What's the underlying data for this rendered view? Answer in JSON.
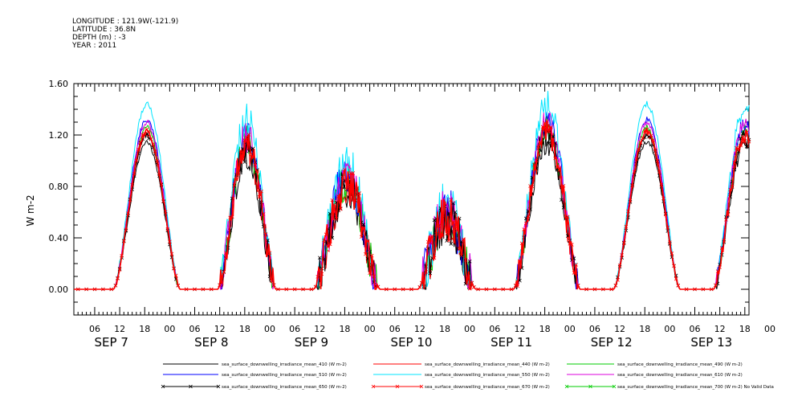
{
  "header": {
    "longitude": "LONGITUDE : 121.9W(-121.9)",
    "latitude": "LATITUDE : 36.8N",
    "depth": "DEPTH (m) : -3",
    "year": "YEAR : 2011"
  },
  "chart_data": {
    "type": "line",
    "title": "",
    "xlabel": "",
    "ylabel": "W m-2",
    "ylim": [
      -0.2,
      1.6
    ],
    "yticks": [
      "0.00",
      "0.40",
      "0.80",
      "1.20",
      "1.60"
    ],
    "ytick_values": [
      0.0,
      0.4,
      0.8,
      1.2,
      1.6
    ],
    "x_unit": "hours",
    "x_range_hours": [
      1,
      163
    ],
    "hour_tick_labels": [
      "06",
      "12",
      "18",
      "00",
      "06",
      "12",
      "18",
      "00",
      "06",
      "12",
      "18",
      "00",
      "06",
      "12",
      "18",
      "00",
      "06",
      "12",
      "18",
      "00",
      "06",
      "12",
      "18",
      "00",
      "06",
      "12",
      "18",
      "00"
    ],
    "day_labels": [
      "SEP 7",
      "SEP 8",
      "SEP 9",
      "SEP 10",
      "SEP 11",
      "SEP 12",
      "SEP 13"
    ],
    "days": [
      {
        "label": "SEP 7",
        "center": 18.5,
        "half_width": 8,
        "peak": 1.2,
        "noise": 0.02
      },
      {
        "label": "SEP 8",
        "center": 42.5,
        "half_width": 7,
        "peak": 1.1,
        "noise": 0.12
      },
      {
        "label": "SEP 9",
        "center": 66.5,
        "half_width": 8,
        "peak": 0.8,
        "noise": 0.15
      },
      {
        "label": "SEP 10",
        "center": 90.5,
        "half_width": 7,
        "peak": 0.55,
        "noise": 0.18
      },
      {
        "label": "SEP 11",
        "center": 114.5,
        "half_width": 8,
        "peak": 1.2,
        "noise": 0.1
      },
      {
        "label": "SEP 12",
        "center": 138.5,
        "half_width": 8,
        "peak": 1.2,
        "noise": 0.02
      },
      {
        "label": "SEP 13",
        "center": 162.0,
        "half_width": 7.5,
        "peak": 1.18,
        "noise": 0.06
      }
    ],
    "series": [
      {
        "name": "sea_surface_downwelling_irradiance_mean_410 (W m-2)",
        "color": "#000000",
        "scale": 0.95,
        "marker": "none"
      },
      {
        "name": "sea_surface_downwelling_irradiance_mean_440 (W m-2)",
        "color": "#ff0000",
        "scale": 1.0,
        "marker": "none"
      },
      {
        "name": "sea_surface_downwelling_irradiance_mean_490 (W m-2)",
        "color": "#00cc00",
        "scale": 1.05,
        "marker": "none"
      },
      {
        "name": "sea_surface_downwelling_irradiance_mean_510 (W m-2)",
        "color": "#0000ff",
        "scale": 1.1,
        "marker": "none"
      },
      {
        "name": "sea_surface_downwelling_irradiance_mean_550 (W m-2)",
        "color": "#00e5ff",
        "scale": 1.2,
        "marker": "none"
      },
      {
        "name": "sea_surface_downwelling_irradiance_mean_610 (W m-2)",
        "color": "#dd00dd",
        "scale": 1.08,
        "marker": "none"
      },
      {
        "name": "sea_surface_downwelling_irradiance_mean_650 (W m-2)",
        "color": "#000000",
        "scale": 1.0,
        "marker": "x"
      },
      {
        "name": "sea_surface_downwelling_irradiance_mean_670 (W m-2)",
        "color": "#ff0000",
        "scale": 1.02,
        "marker": "x"
      },
      {
        "name": "sea_surface_downwelling_irradiance_mean_700 (W m-2) No Valid Data",
        "color": "#00cc00",
        "scale": 0,
        "marker": "x"
      }
    ]
  }
}
